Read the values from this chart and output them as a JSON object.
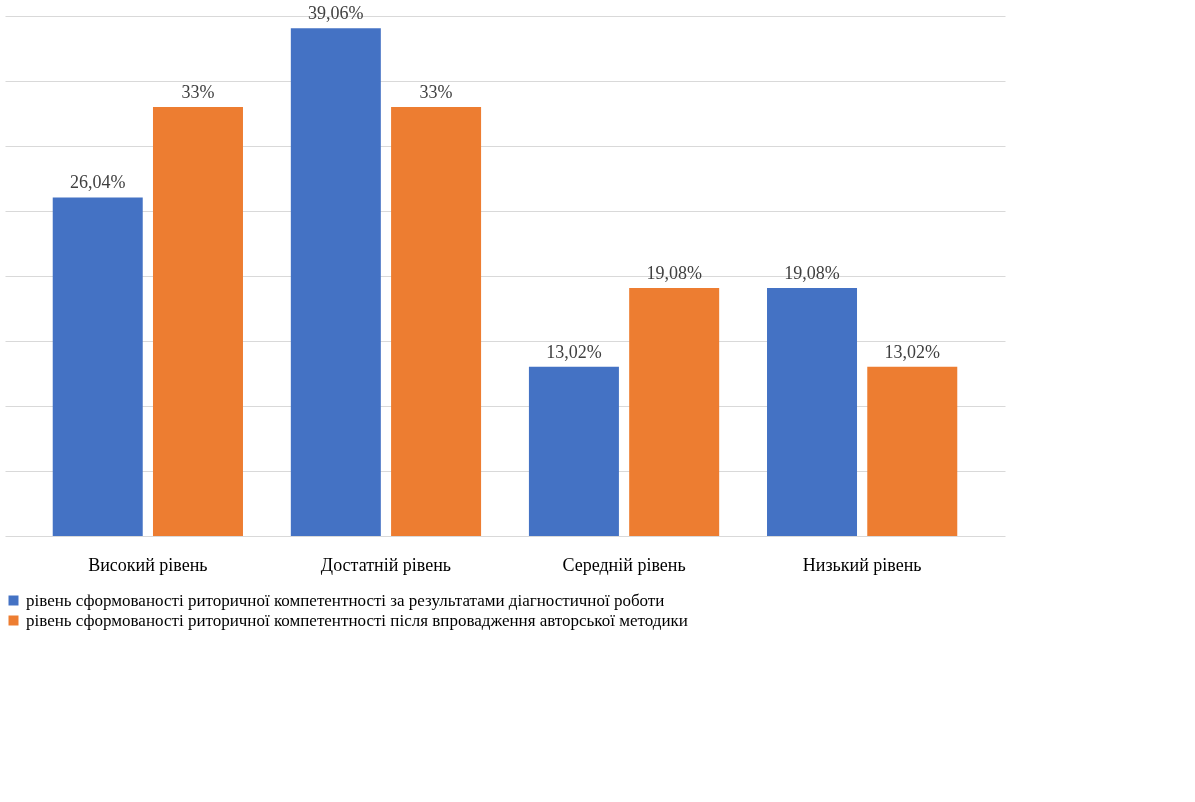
{
  "chart_data": {
    "type": "bar",
    "categories": [
      "Високий рівень",
      "Достатній рівень",
      "Середній рівень",
      "Низький рівень"
    ],
    "series": [
      {
        "name": "рівень сформованості риторичної компетентності за результатами діагностичної роботи",
        "color": "#4472c4",
        "values": [
          26.04,
          39.06,
          13.02,
          19.08
        ],
        "value_labels": [
          "26,04%",
          "39,06%",
          "13,02%",
          "19,08%"
        ]
      },
      {
        "name": "рівень сформованості риторичної компетентності після впровадження авторської методики",
        "color": "#ed7d31",
        "values": [
          33,
          33,
          19.08,
          13.02
        ],
        "value_labels": [
          "33%",
          "33%",
          "19,08%",
          "13,02%"
        ]
      }
    ],
    "ylim": [
      0,
      40
    ],
    "yticks": [
      {
        "value": 0,
        "label": null
      },
      {
        "value": 5,
        "label": null
      },
      {
        "value": 10,
        "label": null
      },
      {
        "value": 15,
        "label": null
      },
      {
        "value": 20,
        "label": null
      },
      {
        "value": 25,
        "label": null
      },
      {
        "value": 30,
        "label": null
      },
      {
        "value": 35,
        "label": null
      },
      {
        "value": 40,
        "label": null
      }
    ],
    "grid": "y",
    "tick_labels": "x",
    "legend": "bottom"
  }
}
